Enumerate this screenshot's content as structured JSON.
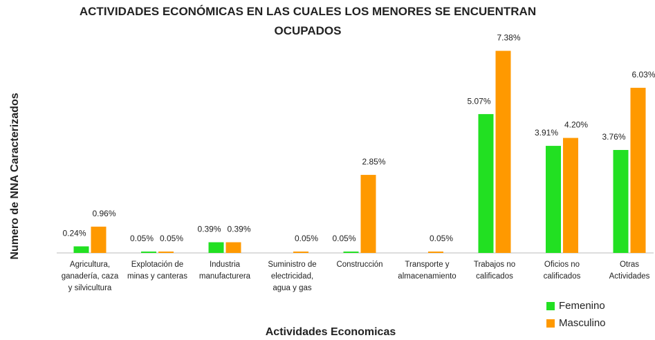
{
  "chart_data": {
    "type": "bar",
    "title": "ACTIVIDADES ECONÓMICAS EN LAS CUALES LOS MENORES SE ENCUENTRAN\nOCUPADOS",
    "x_label": "Actividades Economicas",
    "y_label": "Numero de NNA Caracterizados",
    "categories": [
      "Agricultura,\nganadería, caza\ny silvicultura",
      "Explotación de\nminas y canteras",
      "Industria\nmanufacturera",
      "Suministro de\nelectricidad,\nagua y gas",
      "Construcción",
      "Transporte y\nalmacenamiento",
      "Trabajos no\ncalificados",
      "Oficios no\ncalificados",
      "Otras\nActividades"
    ],
    "series": [
      {
        "name": "Femenino",
        "color": "#22e022",
        "values": [
          0.24,
          0.05,
          0.39,
          null,
          0.05,
          null,
          5.07,
          3.91,
          3.76
        ],
        "value_labels": [
          "0.24%",
          "0.05%",
          "0.39%",
          null,
          "0.05%",
          null,
          "5.07%",
          "3.91%",
          "3.76%"
        ]
      },
      {
        "name": "Masculino",
        "color": "#ff9900",
        "values": [
          0.96,
          0.05,
          0.39,
          0.05,
          2.85,
          0.05,
          7.38,
          4.2,
          6.03
        ],
        "value_labels": [
          "0.96%",
          "0.05%",
          "0.39%",
          "0.05%",
          "2.85%",
          "0.05%",
          "7.38%",
          "4.20%",
          "6.03%"
        ]
      }
    ],
    "ylim": [
      0,
      8
    ],
    "legend": "bottom-right"
  }
}
